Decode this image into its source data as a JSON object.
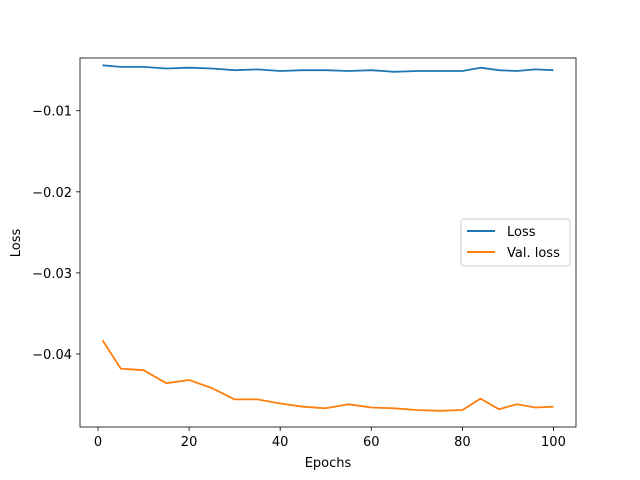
{
  "chart_data": {
    "type": "line",
    "title": "",
    "xlabel": "Epochs",
    "ylabel": "Loss",
    "xlim": [
      -3.95,
      104.95
    ],
    "ylim": [
      -0.049,
      -0.0035
    ],
    "xticks": [
      0,
      20,
      40,
      60,
      80,
      100
    ],
    "yticks": [
      -0.01,
      -0.02,
      -0.03,
      -0.04
    ],
    "ytick_labels": [
      "−0.01",
      "−0.02",
      "−0.03",
      "−0.04"
    ],
    "grid": false,
    "legend_position": "center-right",
    "x": [
      1,
      5,
      10,
      15,
      20,
      25,
      30,
      35,
      40,
      45,
      50,
      55,
      60,
      65,
      70,
      75,
      80,
      84,
      88,
      92,
      96,
      100
    ],
    "series": [
      {
        "name": "Loss",
        "color": "#1f77b4",
        "values": [
          -0.0044,
          -0.0046,
          -0.0046,
          -0.0048,
          -0.0047,
          -0.0048,
          -0.005,
          -0.0049,
          -0.0051,
          -0.005,
          -0.005,
          -0.0051,
          -0.005,
          -0.0052,
          -0.0051,
          -0.0051,
          -0.0051,
          -0.0047,
          -0.005,
          -0.0051,
          -0.0049,
          -0.005
        ]
      },
      {
        "name": "Val. loss",
        "color": "#ff7f0e",
        "values": [
          -0.0383,
          -0.0418,
          -0.042,
          -0.0436,
          -0.0432,
          -0.0442,
          -0.0456,
          -0.0456,
          -0.0461,
          -0.0465,
          -0.0467,
          -0.0462,
          -0.0466,
          -0.0467,
          -0.0469,
          -0.047,
          -0.0469,
          -0.0455,
          -0.0468,
          -0.0462,
          -0.0466,
          -0.0465
        ]
      }
    ]
  }
}
